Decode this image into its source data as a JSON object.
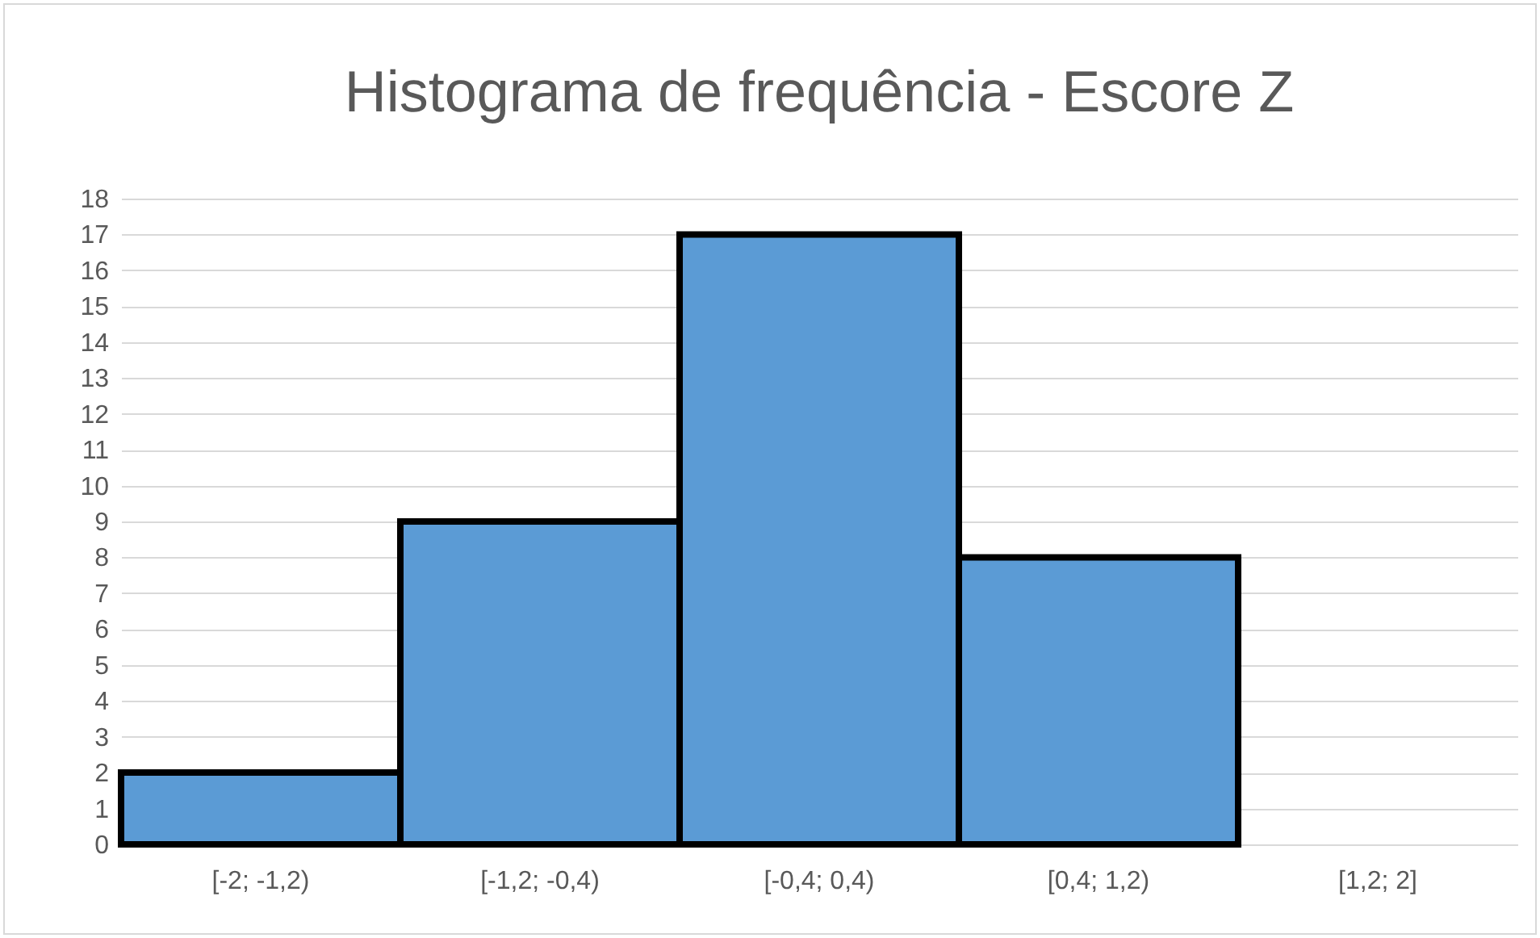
{
  "chart_data": {
    "type": "bar",
    "title": "Histograma de frequência - Escore Z",
    "categories": [
      "[-2; -1,2)",
      "[-1,2; -0,4)",
      "[-0,4; 0,4)",
      "[0,4; 1,2)",
      "[1,2; 2]"
    ],
    "values": [
      2,
      9,
      17,
      8,
      0
    ],
    "color": "#5b9bd5",
    "ylim": [
      0,
      18
    ],
    "yticks": [
      0,
      1,
      2,
      3,
      4,
      5,
      6,
      7,
      8,
      9,
      10,
      11,
      12,
      13,
      14,
      15,
      16,
      17,
      18
    ],
    "grid": true
  }
}
